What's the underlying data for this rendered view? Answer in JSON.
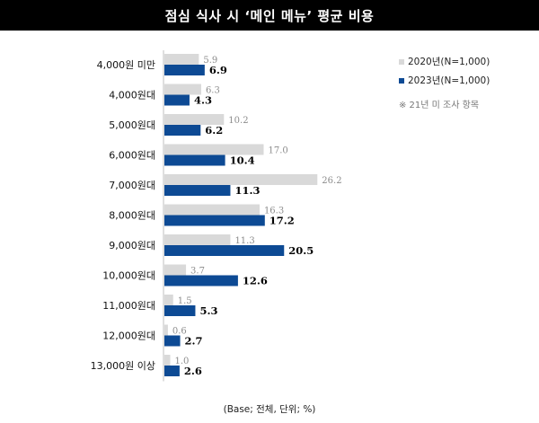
{
  "page": {
    "note": "※ 21년 미 조사 항목",
    "base_note": "(Base; 전체, 단위; %)"
  },
  "chart_data": {
    "type": "bar",
    "orientation": "horizontal",
    "title": "점심 식사 시 ‘메인 메뉴’ 평균 비용",
    "categories": [
      "4,000원 미만",
      "4,000원대",
      "5,000원대",
      "6,000원대",
      "7,000원대",
      "8,000원대",
      "9,000원대",
      "10,000원대",
      "11,000원대",
      "12,000원대",
      "13,000원 이상"
    ],
    "series": [
      {
        "name": "2020년(N=1,000)",
        "color": "#d9d9d9",
        "values": [
          5.9,
          6.3,
          10.2,
          17.0,
          26.2,
          16.3,
          11.3,
          3.7,
          1.5,
          0.6,
          1.0
        ]
      },
      {
        "name": "2023년(N=1,000)",
        "color": "#0d4a94",
        "values": [
          6.9,
          4.3,
          6.2,
          10.4,
          11.3,
          17.2,
          20.5,
          12.6,
          5.3,
          2.7,
          2.6
        ]
      }
    ],
    "value_labels": [
      [
        "5.9",
        "6.3",
        "10.2",
        "17.0",
        "26.2",
        "16.3",
        "11.3",
        "3.7",
        "1.5",
        "0.6",
        "1.0"
      ],
      [
        "6.9",
        "4.3",
        "6.2",
        "10.4",
        "11.3",
        "17.2",
        "20.5",
        "12.6",
        "5.3",
        "2.7",
        "2.6"
      ]
    ],
    "legend_position": "top-right",
    "grid": false,
    "xlim": [
      0,
      30
    ]
  }
}
